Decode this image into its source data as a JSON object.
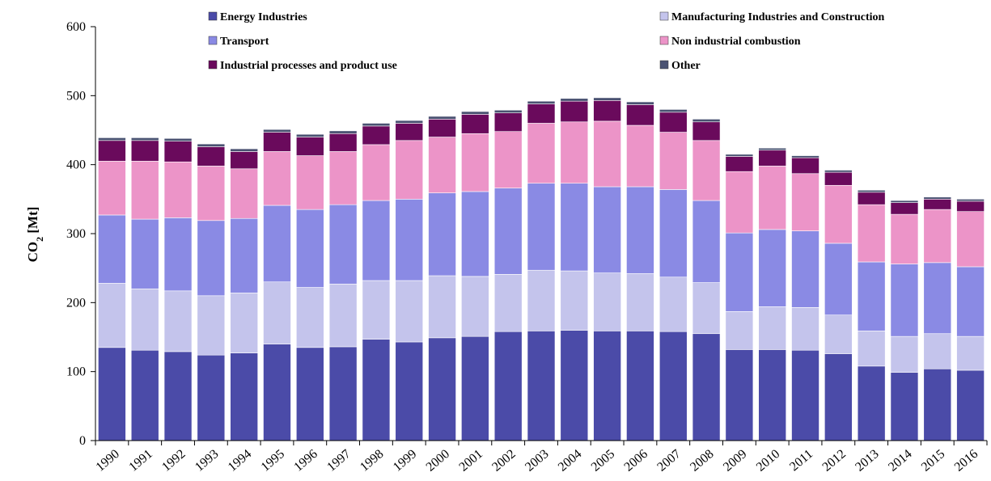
{
  "chart_data": {
    "type": "bar",
    "stacked": true,
    "title": "",
    "ylabel": "CO₂ [Mt]",
    "ylabel_main": "CO",
    "ylabel_sub": "2",
    "ylabel_unit": " [Mt]",
    "xlabel": "",
    "ylim": [
      0,
      600
    ],
    "yticks": [
      "0",
      "100",
      "200",
      "300",
      "400",
      "500",
      "600"
    ],
    "categories": [
      "1990",
      "1991",
      "1992",
      "1993",
      "1994",
      "1995",
      "1996",
      "1997",
      "1998",
      "1999",
      "2000",
      "2001",
      "2002",
      "2003",
      "2004",
      "2005",
      "2006",
      "2007",
      "2008",
      "2009",
      "2010",
      "2011",
      "2012",
      "2013",
      "2014",
      "2015",
      "2016"
    ],
    "legend_position": "top",
    "series": [
      {
        "name": "Energy Industries",
        "color": "#4b4ba8",
        "values": [
          135,
          131,
          129,
          124,
          127,
          140,
          135,
          136,
          147,
          143,
          149,
          151,
          158,
          159,
          160,
          159,
          159,
          158,
          155,
          132,
          132,
          131,
          126,
          108,
          99,
          104,
          102
        ]
      },
      {
        "name": "Manufacturing Industries and Construction",
        "color": "#c4c4ec",
        "values": [
          93,
          89,
          88,
          86,
          87,
          90,
          87,
          91,
          85,
          89,
          90,
          87,
          83,
          88,
          86,
          84,
          83,
          79,
          74,
          55,
          62,
          62,
          56,
          51,
          52,
          51,
          49
        ]
      },
      {
        "name": "Transport",
        "color": "#8a8ae4",
        "values": [
          99,
          101,
          106,
          109,
          108,
          111,
          113,
          115,
          116,
          118,
          120,
          123,
          125,
          126,
          127,
          125,
          126,
          127,
          119,
          114,
          112,
          111,
          104,
          100,
          105,
          103,
          101
        ]
      },
      {
        "name": "Non industrial combustion",
        "color": "#ec94c8",
        "values": [
          78,
          84,
          81,
          79,
          72,
          78,
          78,
          77,
          81,
          85,
          81,
          84,
          82,
          87,
          89,
          95,
          89,
          83,
          87,
          89,
          92,
          83,
          84,
          83,
          72,
          77,
          80
        ]
      },
      {
        "name": "Industrial processes and product use",
        "color": "#6a0a5c",
        "values": [
          30,
          30,
          30,
          28,
          25,
          28,
          27,
          26,
          27,
          25,
          26,
          28,
          27,
          28,
          30,
          30,
          30,
          29,
          27,
          22,
          23,
          23,
          19,
          18,
          17,
          15,
          15
        ]
      },
      {
        "name": "Other",
        "color": "#4a5272",
        "values": [
          4,
          4,
          4,
          4,
          4,
          4,
          4,
          4,
          4,
          4,
          4,
          4,
          4,
          4,
          4,
          4,
          4,
          4,
          4,
          3,
          3,
          3,
          3,
          3,
          3,
          3,
          3
        ]
      }
    ]
  }
}
